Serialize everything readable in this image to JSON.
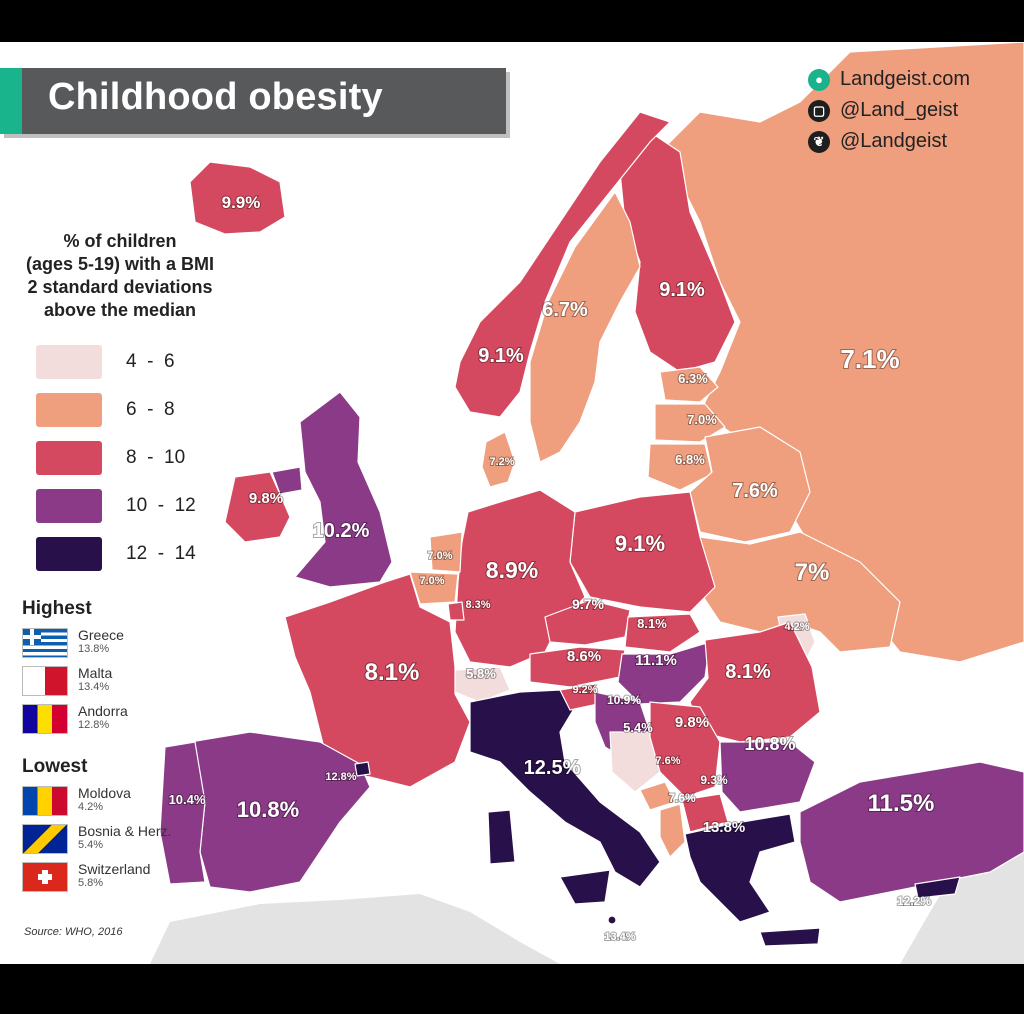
{
  "title": "Childhood obesity",
  "social": [
    {
      "icon": "globe-icon",
      "text": "Landgeist.com"
    },
    {
      "icon": "instagram-icon",
      "text": "@Land_geist"
    },
    {
      "icon": "twitter-icon",
      "text": "@Landgeist"
    }
  ],
  "legend": {
    "title_lines": [
      "% of children",
      "(ages 5-19) with a BMI",
      "2 standard deviations",
      "above the median"
    ],
    "bins": [
      {
        "label": "4  -  6",
        "color": "#f2dcdc"
      },
      {
        "label": "6  -  8",
        "color": "#ef9e7e"
      },
      {
        "label": "8  -  10",
        "color": "#d4495f"
      },
      {
        "label": "10  -  12",
        "color": "#8a3a86"
      },
      {
        "label": "12  -  14",
        "color": "#28104a"
      }
    ]
  },
  "highest": {
    "title": "Highest",
    "items": [
      {
        "flag": "greece-flag",
        "name": "Greece",
        "value": "13.8%"
      },
      {
        "flag": "malta-flag",
        "name": "Malta",
        "value": "13.4%"
      },
      {
        "flag": "andorra-flag",
        "name": "Andorra",
        "value": "12.8%"
      }
    ]
  },
  "lowest": {
    "title": "Lowest",
    "items": [
      {
        "flag": "moldova-flag",
        "name": "Moldova",
        "value": "4.2%"
      },
      {
        "flag": "bosnia-flag",
        "name": "Bosnia & Herz.",
        "value": "5.4%"
      },
      {
        "flag": "switzerland-flag",
        "name": "Switzerland",
        "value": "5.8%"
      }
    ]
  },
  "source": "Source: WHO, 2016",
  "countries": [
    {
      "name": "Iceland",
      "value": 9.9,
      "label": "9.9%"
    },
    {
      "name": "Norway",
      "value": 9.1,
      "label": "9.1%"
    },
    {
      "name": "Sweden",
      "value": 6.7,
      "label": "6.7%"
    },
    {
      "name": "Finland",
      "value": 9.1,
      "label": "9.1%"
    },
    {
      "name": "Russia",
      "value": 7.1,
      "label": "7.1%"
    },
    {
      "name": "Estonia",
      "value": 6.3,
      "label": "6.3%"
    },
    {
      "name": "Latvia",
      "value": 7.0,
      "label": "7.0%"
    },
    {
      "name": "Lithuania",
      "value": 6.8,
      "label": "6.8%"
    },
    {
      "name": "Belarus",
      "value": 7.6,
      "label": "7.6%"
    },
    {
      "name": "Ukraine",
      "value": 7.0,
      "label": "7%"
    },
    {
      "name": "Moldova",
      "value": 4.2,
      "label": "4.2%"
    },
    {
      "name": "Denmark",
      "value": 7.2,
      "label": "7.2%"
    },
    {
      "name": "Ireland",
      "value": 9.8,
      "label": "9.8%"
    },
    {
      "name": "United Kingdom",
      "value": 10.2,
      "label": "10.2%"
    },
    {
      "name": "Netherlands",
      "value": 7.0,
      "label": "7.0%"
    },
    {
      "name": "Belgium",
      "value": 7.0,
      "label": "7.0%"
    },
    {
      "name": "Luxembourg",
      "value": 8.3,
      "label": "8.3%"
    },
    {
      "name": "Germany",
      "value": 8.9,
      "label": "8.9%"
    },
    {
      "name": "Poland",
      "value": 9.1,
      "label": "9.1%"
    },
    {
      "name": "Czechia",
      "value": 9.7,
      "label": "9.7%"
    },
    {
      "name": "Slovakia",
      "value": 8.1,
      "label": "8.1%"
    },
    {
      "name": "Austria",
      "value": 8.6,
      "label": "8.6%"
    },
    {
      "name": "Hungary",
      "value": 11.1,
      "label": "11.1%"
    },
    {
      "name": "Romania",
      "value": 8.1,
      "label": "8.1%"
    },
    {
      "name": "France",
      "value": 8.1,
      "label": "8.1%"
    },
    {
      "name": "Switzerland",
      "value": 5.8,
      "label": "5.8%"
    },
    {
      "name": "Slovenia",
      "value": 9.2,
      "label": "9.2%"
    },
    {
      "name": "Croatia",
      "value": 10.9,
      "label": "10.9%"
    },
    {
      "name": "Bosnia & Herz.",
      "value": 5.4,
      "label": "5.4%"
    },
    {
      "name": "Serbia",
      "value": 9.8,
      "label": "9.8%"
    },
    {
      "name": "Bulgaria",
      "value": 10.8,
      "label": "10.8%"
    },
    {
      "name": "Montenegro",
      "value": 7.6,
      "label": "7.6%"
    },
    {
      "name": "North Macedonia",
      "value": 9.3,
      "label": "9.3%"
    },
    {
      "name": "Albania",
      "value": 7.6,
      "label": "7.6%"
    },
    {
      "name": "Greece",
      "value": 13.8,
      "label": "13.8%"
    },
    {
      "name": "Italy",
      "value": 12.5,
      "label": "12.5%"
    },
    {
      "name": "Malta",
      "value": 13.4,
      "label": "13.4%"
    },
    {
      "name": "Andorra",
      "value": 12.8,
      "label": "12.8%"
    },
    {
      "name": "Spain",
      "value": 10.8,
      "label": "10.8%"
    },
    {
      "name": "Portugal",
      "value": 10.4,
      "label": "10.4%"
    },
    {
      "name": "Turkey",
      "value": 11.5,
      "label": "11.5%"
    },
    {
      "name": "Cyprus",
      "value": 12.2,
      "label": "12.2%"
    }
  ]
}
